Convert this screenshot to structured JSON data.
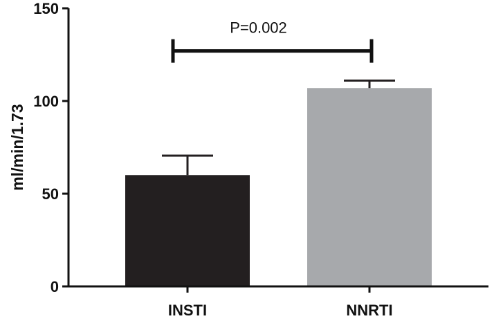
{
  "chart_data": {
    "type": "bar",
    "categories": [
      "INSTI",
      "NNRTI"
    ],
    "values": [
      60,
      107
    ],
    "error_upper": [
      70.5,
      111
    ],
    "bar_colors": [
      "#231f20",
      "#a7a9ac"
    ],
    "ylabel": "ml/min/1.73",
    "xlabel": "",
    "ylim": [
      0,
      150
    ],
    "yticks": [
      0,
      50,
      100,
      150
    ],
    "grid": false,
    "significance": {
      "label": "P=0.002",
      "y_value": 127,
      "between": [
        "INSTI",
        "NNRTI"
      ]
    }
  }
}
